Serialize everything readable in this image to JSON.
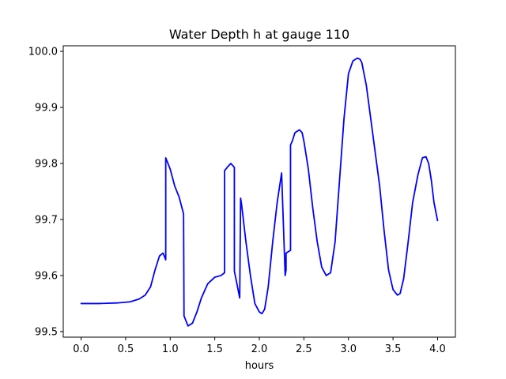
{
  "chart_data": {
    "type": "line",
    "title": "Water Depth h at gauge 110",
    "xlabel": "hours",
    "ylabel": "",
    "xlim": [
      -0.2,
      4.2
    ],
    "ylim": [
      99.49,
      100.01
    ],
    "x_ticks": [
      0.0,
      0.5,
      1.0,
      1.5,
      2.0,
      2.5,
      3.0,
      3.5,
      4.0
    ],
    "x_tick_labels": [
      "0.0",
      "0.5",
      "1.0",
      "1.5",
      "2.0",
      "2.5",
      "3.0",
      "3.5",
      "4.0"
    ],
    "y_ticks": [
      99.5,
      99.6,
      99.7,
      99.8,
      99.9,
      100.0
    ],
    "y_tick_labels": [
      "99.5",
      "99.6",
      "99.7",
      "99.8",
      "99.9",
      "100.0"
    ],
    "grid": false,
    "series": [
      {
        "color": "#0000ff",
        "x": [
          0.0,
          0.2,
          0.4,
          0.55,
          0.65,
          0.72,
          0.78,
          0.83,
          0.88,
          0.92,
          0.95,
          0.95,
          1.0,
          1.05,
          1.1,
          1.15,
          1.155,
          1.2,
          1.25,
          1.3,
          1.35,
          1.42,
          1.5,
          1.57,
          1.61,
          1.61,
          1.65,
          1.68,
          1.72,
          1.72,
          1.78,
          1.79,
          1.8,
          1.85,
          1.9,
          1.95,
          2.0,
          2.03,
          2.06,
          2.1,
          2.15,
          2.2,
          2.25,
          2.29,
          2.3,
          2.3,
          2.35,
          2.35,
          2.37,
          2.4,
          2.45,
          2.48,
          2.5,
          2.55,
          2.6,
          2.65,
          2.7,
          2.75,
          2.8,
          2.85,
          2.9,
          2.95,
          3.0,
          3.05,
          3.1,
          3.13,
          3.15,
          3.2,
          3.25,
          3.3,
          3.35,
          3.4,
          3.45,
          3.5,
          3.55,
          3.58,
          3.62,
          3.67,
          3.72,
          3.78,
          3.83,
          3.87,
          3.9,
          3.93,
          3.96,
          4.0
        ],
        "y": [
          99.55,
          99.55,
          99.551,
          99.553,
          99.558,
          99.565,
          99.58,
          99.61,
          99.635,
          99.64,
          99.628,
          99.81,
          99.79,
          99.76,
          99.74,
          99.71,
          99.528,
          99.51,
          99.515,
          99.535,
          99.56,
          99.585,
          99.597,
          99.6,
          99.605,
          99.787,
          99.795,
          99.8,
          99.793,
          99.608,
          99.56,
          99.738,
          99.728,
          99.66,
          99.6,
          99.55,
          99.535,
          99.532,
          99.54,
          99.58,
          99.66,
          99.73,
          99.783,
          99.6,
          99.61,
          99.64,
          99.645,
          99.833,
          99.84,
          99.855,
          99.86,
          99.855,
          99.84,
          99.79,
          99.72,
          99.66,
          99.615,
          99.6,
          99.605,
          99.66,
          99.77,
          99.88,
          99.96,
          99.983,
          99.988,
          99.986,
          99.98,
          99.94,
          99.88,
          99.82,
          99.76,
          99.68,
          99.61,
          99.575,
          99.565,
          99.568,
          99.595,
          99.66,
          99.73,
          99.78,
          99.81,
          99.812,
          99.8,
          99.77,
          99.73,
          99.698
        ]
      }
    ]
  }
}
